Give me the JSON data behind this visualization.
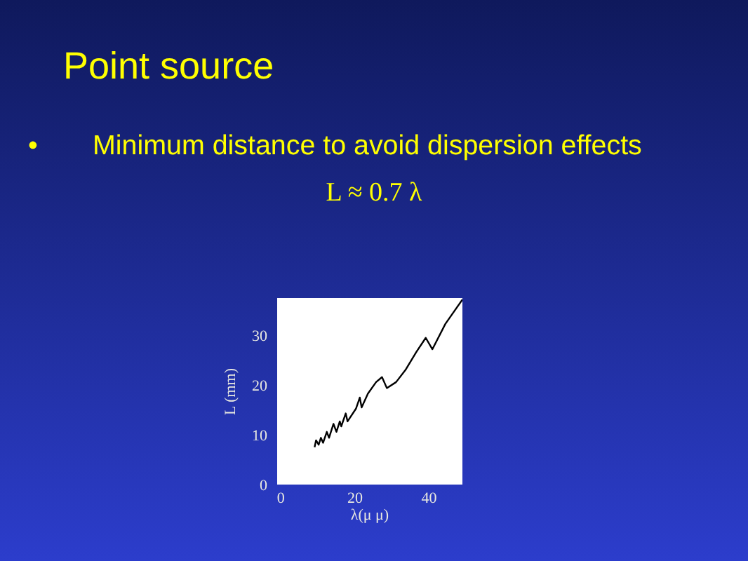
{
  "chart_data": {
    "type": "line",
    "title": "Point source",
    "subtitle": "•\tMinimum distance to avoid dispersion effects",
    "annotations": [
      "L ≈ 0.7 λ"
    ],
    "xlabel": "λ(μ μ)",
    "ylabel": "L (mm)",
    "x": [
      9.1,
      9.5,
      10.2,
      10.8,
      11.4,
      12.4,
      13.0,
      14.2,
      15.0,
      15.9,
      16.3,
      17.5,
      18.0,
      20.3,
      21.3,
      21.8,
      23.5,
      25.7,
      27.3,
      28.6,
      31.1,
      33.6,
      36.6,
      39.1,
      40.9,
      44.4,
      49.0
    ],
    "values": [
      7.5,
      8.9,
      8.0,
      9.4,
      8.4,
      10.6,
      9.4,
      12.2,
      10.6,
      12.7,
      11.7,
      14.3,
      12.7,
      15.3,
      17.5,
      15.5,
      18.3,
      20.6,
      21.6,
      19.4,
      20.6,
      23.0,
      26.7,
      29.5,
      27.2,
      32.3,
      37.2
    ],
    "color": "#000000",
    "xlim": [
      -1,
      49
    ],
    "ylim": [
      0,
      37.5
    ],
    "xticks": [
      0,
      20,
      40
    ],
    "yticks": [
      0,
      10,
      20,
      30
    ],
    "grid": false,
    "marker": "none",
    "line_style": "solid"
  }
}
